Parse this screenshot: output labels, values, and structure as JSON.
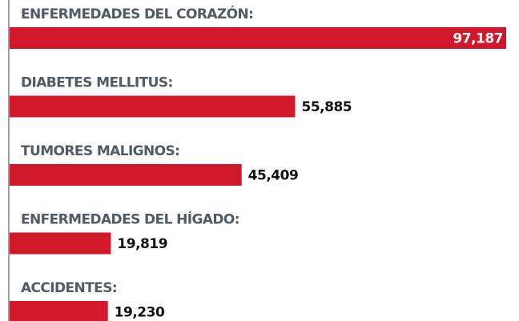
{
  "chart_data": {
    "type": "bar",
    "orientation": "horizontal",
    "categories": [
      "ENFERMEDADES DEL CORAZÓN:",
      "DIABETES MELLITUS:",
      "TUMORES MALIGNOS:",
      "ENFERMEDADES DEL HÍGADO:",
      "ACCIDENTES:"
    ],
    "values": [
      97187,
      55885,
      45409,
      19819,
      19230
    ],
    "value_labels": [
      "97,187",
      "55,885",
      "45,409",
      "19,819",
      "19,230"
    ],
    "color": "#d0182a"
  }
}
